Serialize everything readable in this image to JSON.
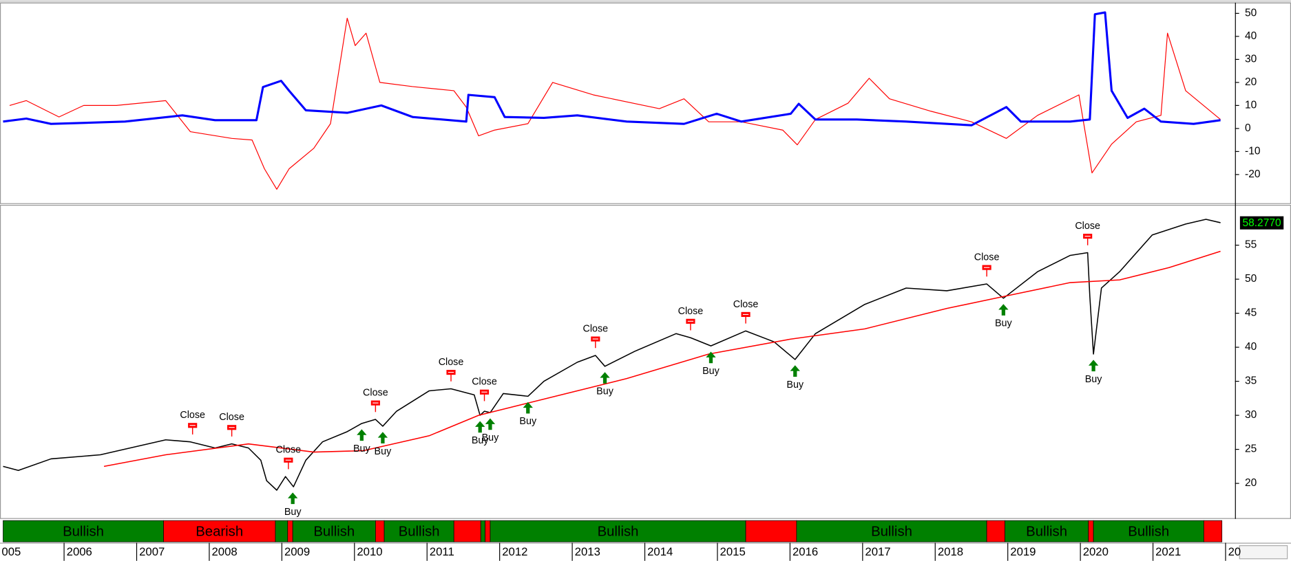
{
  "chart_data": [
    {
      "type": "line",
      "xlim": [
        2005.14,
        2022.13
      ],
      "ylim": [
        -32.1,
        54.3
      ],
      "yticks": [
        -20,
        -10,
        0,
        10,
        20,
        30,
        40,
        50
      ],
      "series": [
        {
          "color": "#ff0000",
          "width": 1,
          "x": [
            2005.25,
            2005.48,
            2005.93,
            2006.27,
            2006.72,
            2007.4,
            2007.74,
            2008.31,
            2008.59,
            2008.76,
            2008.93,
            2009.1,
            2009.44,
            2009.67,
            2009.9,
            2010.01,
            2010.16,
            2010.35,
            2010.8,
            2011.37,
            2011.54,
            2011.71,
            2011.93,
            2012.39,
            2012.73,
            2013.29,
            2014.2,
            2014.54,
            2014.88,
            2015.33,
            2015.9,
            2016.1,
            2016.35,
            2016.8,
            2017.09,
            2017.37,
            2017.94,
            2018.5,
            2018.98,
            2019.41,
            2019.98,
            2020.16,
            2020.43,
            2020.77,
            2021.11,
            2021.2,
            2021.45,
            2021.93
          ],
          "values": [
            10,
            12.1,
            5,
            10,
            10,
            12.1,
            -1.4,
            -4.3,
            -5,
            -17.5,
            -26.4,
            -17.5,
            -8.6,
            2.1,
            47.9,
            36,
            41.4,
            20,
            18.2,
            16.4,
            9.3,
            -3.2,
            -0.7,
            2.1,
            20,
            14.6,
            8.6,
            12.9,
            2.9,
            2.9,
            -0.7,
            -7.1,
            3.9,
            11,
            21.8,
            12.9,
            7.5,
            2.9,
            -4.3,
            5.7,
            14.6,
            -19.3,
            -6.8,
            2.9,
            5.7,
            41.4,
            16.4,
            3.9
          ]
        },
        {
          "color": "#0000ff",
          "width": 2.6,
          "x": [
            2005.16,
            2005.48,
            2005.82,
            2006.84,
            2007.63,
            2008.08,
            2008.65,
            2008.74,
            2008.99,
            2009.1,
            2009.33,
            2009.9,
            2010.37,
            2010.8,
            2011.54,
            2011.57,
            2011.93,
            2012.07,
            2012.61,
            2013.07,
            2013.75,
            2014.54,
            2014.99,
            2015.33,
            2016.01,
            2016.12,
            2016.35,
            2016.92,
            2017.6,
            2018.5,
            2018.98,
            2019.18,
            2019.86,
            2020.13,
            2020.2,
            2020.34,
            2020.43,
            2020.65,
            2020.88,
            2021.11,
            2021.56,
            2021.93
          ],
          "values": [
            3,
            4.3,
            2,
            3,
            5.7,
            3.6,
            3.6,
            18,
            20.7,
            16.4,
            7.9,
            6.8,
            10,
            5,
            3,
            14.6,
            13.6,
            5,
            4.6,
            5.7,
            3,
            2,
            6.4,
            3,
            6.4,
            10.7,
            3.9,
            3.9,
            3,
            1.4,
            9.3,
            3,
            3,
            3.9,
            49.6,
            50.4,
            16.4,
            4.6,
            8.6,
            3,
            2,
            3.6
          ]
        }
      ]
    },
    {
      "type": "line",
      "xlim": [
        2005.14,
        2022.13
      ],
      "ylim": [
        14.9,
        60.8
      ],
      "yticks": [
        20,
        25,
        30,
        35,
        40,
        45,
        50,
        55
      ],
      "xticks": [
        {
          "value": 2005,
          "label": "005"
        },
        2006,
        2007,
        2008,
        2009,
        2010,
        2011,
        2012,
        2013,
        2014,
        2015,
        2016,
        2017,
        2018,
        2019,
        2020,
        2021,
        {
          "value": 2022,
          "label": "20"
        }
      ],
      "last_value": 58.277,
      "last_value_label": "58.2770",
      "series": [
        {
          "color": "#000000",
          "width": 1.3,
          "x": [
            2005.16,
            2005.37,
            2005.82,
            2006.5,
            2007.4,
            2007.74,
            2008.08,
            2008.31,
            2008.54,
            2008.71,
            2008.79,
            2008.93,
            2009.05,
            2009.16,
            2009.33,
            2009.56,
            2009.9,
            2010.1,
            2010.29,
            2010.39,
            2010.58,
            2011.03,
            2011.33,
            2011.65,
            2011.73,
            2011.79,
            2011.87,
            2012.05,
            2012.39,
            2012.61,
            2013.07,
            2013.32,
            2013.45,
            2013.86,
            2014.43,
            2014.63,
            2014.91,
            2015.39,
            2015.78,
            2016.07,
            2016.35,
            2017.03,
            2017.6,
            2018.16,
            2018.71,
            2018.94,
            2019.41,
            2019.86,
            2020.1,
            2020.13,
            2020.18,
            2020.29,
            2020.54,
            2020.99,
            2021.45,
            2021.73,
            2021.93
          ],
          "values": [
            22.5,
            21.9,
            23.6,
            24.2,
            26.4,
            26.1,
            25.2,
            25.8,
            25.2,
            23.4,
            20.4,
            19,
            21,
            19.5,
            23.4,
            26.1,
            27.6,
            28.8,
            29.4,
            28.4,
            30.6,
            33.6,
            33.9,
            33,
            30,
            30.6,
            30.4,
            33.2,
            32.8,
            35,
            37.8,
            38.8,
            37.2,
            39.4,
            42,
            41.4,
            40.2,
            42.4,
            40.8,
            38.2,
            42,
            46.3,
            48.7,
            48.3,
            49.3,
            47.2,
            51.1,
            53.5,
            53.9,
            47.5,
            39,
            48.7,
            51.1,
            56.5,
            58.1,
            58.8,
            58.3
          ]
        },
        {
          "color": "#ff0000",
          "width": 1.3,
          "x": [
            2006.55,
            2007.4,
            2008.54,
            2009.44,
            2010.12,
            2011.03,
            2011.71,
            2012.39,
            2013.75,
            2014.88,
            2016.01,
            2017.03,
            2018.16,
            2018.96,
            2019.86,
            2020.54,
            2021.22,
            2021.93
          ],
          "values": [
            22.5,
            24.2,
            25.8,
            24.6,
            24.8,
            27,
            30,
            31.8,
            35.4,
            39,
            41.2,
            42.7,
            45.7,
            47.5,
            49.5,
            49.9,
            51.7,
            54.1
          ]
        }
      ],
      "signals": [
        {
          "label": "Close",
          "x": 2007.77,
          "value": 26.1
        },
        {
          "label": "Close",
          "x": 2008.31,
          "value": 25.8
        },
        {
          "label": "Close",
          "x": 2009.09,
          "value": 21
        },
        {
          "label": "Buy",
          "x": 2009.15,
          "value": 19.5
        },
        {
          "label": "Buy",
          "x": 2010.1,
          "value": 28.8
        },
        {
          "label": "Close",
          "x": 2010.29,
          "value": 29.4
        },
        {
          "label": "Buy",
          "x": 2010.39,
          "value": 28.4
        },
        {
          "label": "Close",
          "x": 2011.33,
          "value": 33.9
        },
        {
          "label": "Buy",
          "x": 2011.73,
          "value": 30
        },
        {
          "label": "Close",
          "x": 2011.79,
          "value": 31
        },
        {
          "label": "Buy",
          "x": 2011.87,
          "value": 30.4
        },
        {
          "label": "Buy",
          "x": 2012.39,
          "value": 32.8
        },
        {
          "label": "Close",
          "x": 2013.32,
          "value": 38.8
        },
        {
          "label": "Buy",
          "x": 2013.45,
          "value": 37.2
        },
        {
          "label": "Close",
          "x": 2014.63,
          "value": 41.4
        },
        {
          "label": "Buy",
          "x": 2014.91,
          "value": 40.2
        },
        {
          "label": "Close",
          "x": 2015.39,
          "value": 42.4
        },
        {
          "label": "Buy",
          "x": 2016.07,
          "value": 38.2
        },
        {
          "label": "Close",
          "x": 2018.71,
          "value": 49.3
        },
        {
          "label": "Buy",
          "x": 2018.94,
          "value": 47.2
        },
        {
          "label": "Close",
          "x": 2020.1,
          "value": 53.9
        },
        {
          "label": "Buy",
          "x": 2020.18,
          "value": 39
        }
      ],
      "regimes": [
        {
          "start": 2005.16,
          "end": 2007.37,
          "color": "#008000",
          "label": "Bullish"
        },
        {
          "start": 2007.37,
          "end": 2008.91,
          "color": "#ff0000",
          "label": "Bearish"
        },
        {
          "start": 2008.91,
          "end": 2009.08,
          "color": "#008000",
          "label": null
        },
        {
          "start": 2009.08,
          "end": 2009.15,
          "color": "#ff0000",
          "label": null
        },
        {
          "start": 2009.15,
          "end": 2010.29,
          "color": "#008000",
          "label": "Bullish"
        },
        {
          "start": 2010.29,
          "end": 2010.41,
          "color": "#ff0000",
          "label": null
        },
        {
          "start": 2010.41,
          "end": 2011.37,
          "color": "#008000",
          "label": "Bullish"
        },
        {
          "start": 2011.37,
          "end": 2011.74,
          "color": "#ff0000",
          "label": null
        },
        {
          "start": 2011.74,
          "end": 2011.8,
          "color": "#008000",
          "label": null
        },
        {
          "start": 2011.8,
          "end": 2011.87,
          "color": "#ff0000",
          "label": null
        },
        {
          "start": 2011.87,
          "end": 2015.39,
          "color": "#008000",
          "label": "Bullish"
        },
        {
          "start": 2015.39,
          "end": 2016.09,
          "color": "#ff0000",
          "label": null
        },
        {
          "start": 2016.09,
          "end": 2018.71,
          "color": "#008000",
          "label": "Bullish"
        },
        {
          "start": 2018.71,
          "end": 2018.96,
          "color": "#ff0000",
          "label": null
        },
        {
          "start": 2018.96,
          "end": 2020.11,
          "color": "#008000",
          "label": "Bullish"
        },
        {
          "start": 2020.11,
          "end": 2020.18,
          "color": "#ff0000",
          "label": null
        },
        {
          "start": 2020.18,
          "end": 2021.7,
          "color": "#008000",
          "label": "Bullish"
        },
        {
          "start": 2021.7,
          "end": 2021.95,
          "color": "#ff0000",
          "label": null
        }
      ]
    }
  ]
}
